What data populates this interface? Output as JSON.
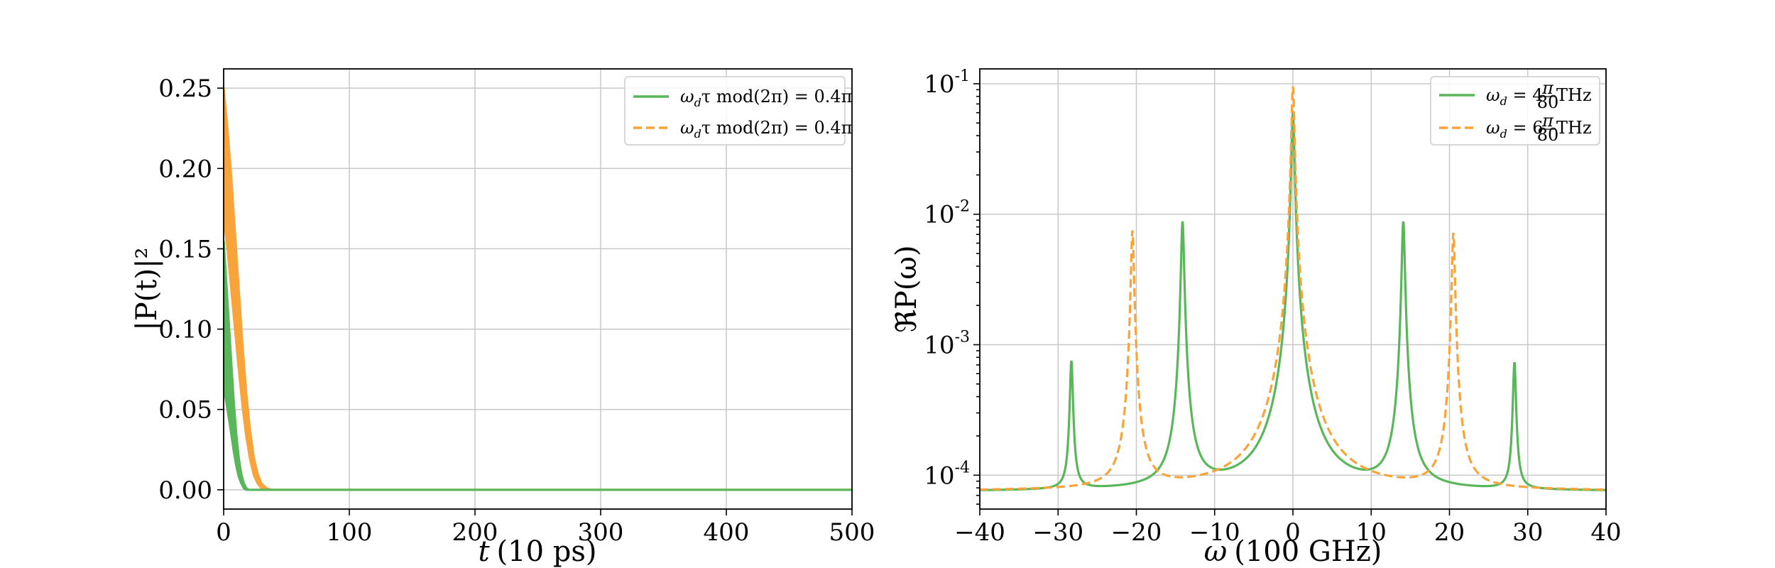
{
  "colors": {
    "green": "#5ab65a",
    "orange": "#f9a33b"
  },
  "chart_data": [
    {
      "type": "line",
      "xlabel": "t (10 ps)",
      "xlabel_var": "t",
      "xlabel_unit": "(10 ps)",
      "ylabel": "|P(t)|²",
      "xlim": [
        0,
        500
      ],
      "ylim": [
        -0.012,
        0.262
      ],
      "xticks": [
        0,
        100,
        200,
        300,
        400,
        500
      ],
      "xtick_labels": [
        "0",
        "100",
        "200",
        "300",
        "400",
        "500"
      ],
      "yticks": [
        0.0,
        0.05,
        0.1,
        0.15,
        0.2,
        0.25
      ],
      "ytick_labels": [
        "0.00",
        "0.05",
        "0.10",
        "0.15",
        "0.20",
        "0.25"
      ],
      "grid": true,
      "legend_position": "top-right",
      "series": [
        {
          "name": "ω_d τ mod(2π) = 0.4π",
          "label_parts": [
            "ω",
            "d",
            "τ mod(2π) = 0.4π"
          ],
          "color": "green",
          "style": "solid",
          "envelope_upper": [
            [
              0,
              0.155
            ],
            [
              2,
              0.13
            ],
            [
              4,
              0.105
            ],
            [
              6,
              0.08
            ],
            [
              8,
              0.055
            ],
            [
              10,
              0.035
            ],
            [
              12,
              0.02
            ],
            [
              14,
              0.01
            ],
            [
              16,
              0.004
            ],
            [
              18,
              0.001
            ],
            [
              20,
              0.0
            ],
            [
              500,
              0.0
            ]
          ],
          "envelope_lower": [
            [
              0,
              0.065
            ],
            [
              2,
              0.055
            ],
            [
              4,
              0.045
            ],
            [
              6,
              0.035
            ],
            [
              8,
              0.024
            ],
            [
              10,
              0.015
            ],
            [
              12,
              0.008
            ],
            [
              14,
              0.004
            ],
            [
              16,
              0.001
            ],
            [
              18,
              0.0
            ],
            [
              500,
              0.0
            ]
          ]
        },
        {
          "name": "ω_d τ mod(2π) = 0.4π",
          "label_parts": [
            "ω",
            "d",
            "τ mod(2π) = 0.4π"
          ],
          "color": "orange",
          "style": "dashed",
          "envelope_upper": [
            [
              0,
              0.25
            ],
            [
              3,
              0.225
            ],
            [
              6,
              0.195
            ],
            [
              9,
              0.16
            ],
            [
              12,
              0.125
            ],
            [
              15,
              0.09
            ],
            [
              18,
              0.06
            ],
            [
              21,
              0.037
            ],
            [
              24,
              0.02
            ],
            [
              27,
              0.01
            ],
            [
              30,
              0.004
            ],
            [
              34,
              0.001
            ],
            [
              38,
              0.0
            ],
            [
              500,
              0.0
            ]
          ],
          "envelope_lower": [
            [
              0,
              0.17
            ],
            [
              3,
              0.15
            ],
            [
              6,
              0.125
            ],
            [
              9,
              0.1
            ],
            [
              12,
              0.075
            ],
            [
              15,
              0.052
            ],
            [
              18,
              0.033
            ],
            [
              21,
              0.019
            ],
            [
              24,
              0.009
            ],
            [
              27,
              0.004
            ],
            [
              30,
              0.001
            ],
            [
              34,
              0.0
            ],
            [
              500,
              0.0
            ]
          ]
        }
      ]
    },
    {
      "type": "line",
      "yscale": "log",
      "xlabel": "ω (100 GHz)",
      "xlabel_var": "ω",
      "xlabel_unit": "(100 GHz)",
      "ylabel": "ℜP(ω)",
      "xlim": [
        -40,
        40
      ],
      "ylim": [
        5.5e-05,
        0.13
      ],
      "xticks": [
        -40,
        -30,
        -20,
        -10,
        0,
        10,
        20,
        30,
        40
      ],
      "xtick_labels": [
        "−40",
        "−30",
        "−20",
        "−10",
        "0",
        "10",
        "20",
        "30",
        "40"
      ],
      "yticks": [
        0.0001,
        0.001,
        0.01,
        0.1
      ],
      "ytick_labels": [
        [
          "10",
          "-4"
        ],
        [
          "10",
          "-3"
        ],
        [
          "10",
          "-2"
        ],
        [
          "10",
          "-1"
        ]
      ],
      "grid": true,
      "legend_position": "top-right",
      "series": [
        {
          "name": "ω_d = 4π/80 THz",
          "label_parts": [
            "ω",
            "d",
            " = 4",
            "π",
            "80",
            " THz"
          ],
          "color": "green",
          "style": "solid",
          "baseline": 7.5e-05,
          "peaks": [
            {
              "x": -28.3,
              "y": 0.00075
            },
            {
              "x": -14.1,
              "y": 0.0088
            },
            {
              "x": 0.0,
              "y": 0.06
            },
            {
              "x": 14.1,
              "y": 0.0088
            },
            {
              "x": 28.3,
              "y": 0.00073
            }
          ]
        },
        {
          "name": "ω_d = 6π/80 THz",
          "label_parts": [
            "ω",
            "d",
            " = 6",
            "π",
            "80",
            " THz"
          ],
          "color": "orange",
          "style": "dashed",
          "baseline": 7.5e-05,
          "peaks": [
            {
              "x": -20.5,
              "y": 0.0075
            },
            {
              "x": 0.0,
              "y": 0.095
            },
            {
              "x": 20.5,
              "y": 0.0072
            }
          ]
        }
      ]
    }
  ]
}
